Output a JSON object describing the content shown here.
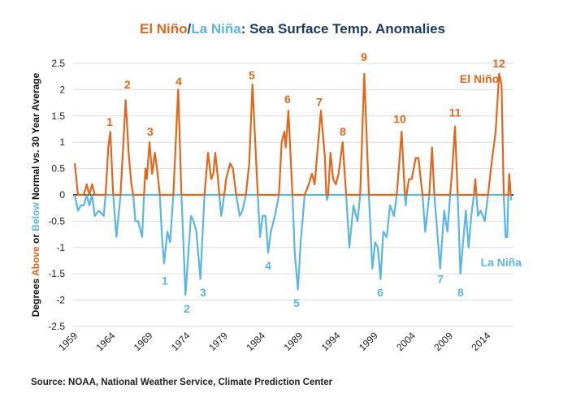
{
  "colors": {
    "el_nino": "#e2661b",
    "la_nina": "#5bb6e6",
    "title": "#1d3a63",
    "zero_line": "#000000",
    "grid": "#dddddd"
  },
  "title": {
    "part1": "El Niño",
    "slash": "/",
    "part2": "La Niña",
    "part3": ": Sea Surface Temp. Anomalies"
  },
  "source": "Source: NOAA, National Weather Service, Climate Prediction Center",
  "chart_data": {
    "type": "line",
    "title": "El Niño/La Niña: Sea Surface Temp. Anomalies",
    "ylabel": {
      "part1": "Degrees ",
      "above": "Above",
      "part2": " or ",
      "below": "Below",
      "part3": " Normal vs. 30 Year Average"
    },
    "xlabel": "",
    "ylim": [
      -2.5,
      2.5
    ],
    "yticks": [
      "2.5",
      "2",
      "1.5",
      "1",
      "0.5",
      "0",
      "-0.5",
      "-1",
      "-1.5",
      "-2",
      "-2.5"
    ],
    "ytick_values": [
      2.5,
      2,
      1.5,
      1,
      0.5,
      0,
      -0.5,
      -1,
      -1.5,
      -2,
      -2.5
    ],
    "xlim": [
      1959,
      2017.4
    ],
    "xticks": [
      "1959",
      "1964",
      "1969",
      "1974",
      "1979",
      "1984",
      "1989",
      "1994",
      "1999",
      "2004",
      "2009",
      "2014"
    ],
    "grid": true,
    "series": [
      {
        "name": "El Niño",
        "rule": "values above 0",
        "color": "#e2661b"
      },
      {
        "name": "La Niña",
        "rule": "values below 0",
        "color": "#5bb6e6"
      }
    ],
    "points": [
      [
        1959.0,
        0.6
      ],
      [
        1959.43,
        -0.3
      ],
      [
        1959.8,
        -0.2
      ],
      [
        1960.2,
        -0.2
      ],
      [
        1960.59,
        0.2
      ],
      [
        1960.95,
        -0.2
      ],
      [
        1961.31,
        0.2
      ],
      [
        1961.67,
        -0.4
      ],
      [
        1962.21,
        -0.3
      ],
      [
        1962.86,
        -0.4
      ],
      [
        1963.11,
        0
      ],
      [
        1963.47,
        0.9
      ],
      [
        1963.73,
        1.2
      ],
      [
        1964.12,
        0
      ],
      [
        1964.55,
        -0.8
      ],
      [
        1965.1,
        0
      ],
      [
        1965.78,
        1.8
      ],
      [
        1966.18,
        0.8
      ],
      [
        1966.54,
        0.2
      ],
      [
        1966.79,
        0
      ],
      [
        1967.08,
        -0.5
      ],
      [
        1967.44,
        -0.5
      ],
      [
        1967.98,
        -0.8
      ],
      [
        1968.23,
        0
      ],
      [
        1968.42,
        0.5
      ],
      [
        1968.6,
        0.3
      ],
      [
        1968.96,
        1.0
      ],
      [
        1969.31,
        0.4
      ],
      [
        1969.68,
        0.8
      ],
      [
        1970.04,
        0.4
      ],
      [
        1970.33,
        0
      ],
      [
        1970.62,
        -0.8
      ],
      [
        1970.9,
        -1.3
      ],
      [
        1971.34,
        -0.7
      ],
      [
        1971.7,
        -0.9
      ],
      [
        1972.13,
        0
      ],
      [
        1972.78,
        2.0
      ],
      [
        1973.21,
        0
      ],
      [
        1973.75,
        -1.9
      ],
      [
        1974.48,
        -0.4
      ],
      [
        1974.83,
        -0.5
      ],
      [
        1975.2,
        -0.7
      ],
      [
        1975.74,
        -1.6
      ],
      [
        1976.28,
        0
      ],
      [
        1976.75,
        0.8
      ],
      [
        1977.18,
        0.3
      ],
      [
        1977.47,
        0.4
      ],
      [
        1977.72,
        0.8
      ],
      [
        1978.08,
        0.3
      ],
      [
        1978.26,
        0
      ],
      [
        1978.51,
        -0.4
      ],
      [
        1978.91,
        0
      ],
      [
        1979.16,
        0.3
      ],
      [
        1979.7,
        0.6
      ],
      [
        1980.07,
        0.5
      ],
      [
        1980.5,
        0
      ],
      [
        1980.97,
        -0.4
      ],
      [
        1981.33,
        -0.3
      ],
      [
        1981.8,
        0
      ],
      [
        1982.24,
        0.6
      ],
      [
        1982.67,
        2.1
      ],
      [
        1983.38,
        0
      ],
      [
        1983.68,
        -0.8
      ],
      [
        1984.03,
        -0.4
      ],
      [
        1984.4,
        -0.4
      ],
      [
        1984.76,
        -1.1
      ],
      [
        1985.12,
        -0.7
      ],
      [
        1985.66,
        -0.4
      ],
      [
        1986.2,
        0
      ],
      [
        1986.56,
        1.0
      ],
      [
        1986.92,
        1.2
      ],
      [
        1987.1,
        0.9
      ],
      [
        1987.46,
        1.6
      ],
      [
        1988.0,
        0
      ],
      [
        1988.3,
        -1.1
      ],
      [
        1988.73,
        -1.8
      ],
      [
        1989.09,
        -0.9
      ],
      [
        1989.63,
        0
      ],
      [
        1990.17,
        0.2
      ],
      [
        1990.6,
        0.4
      ],
      [
        1990.96,
        0.2
      ],
      [
        1991.25,
        0.7
      ],
      [
        1991.79,
        1.6
      ],
      [
        1992.33,
        0.7
      ],
      [
        1992.5,
        0
      ],
      [
        1992.62,
        -0.1
      ],
      [
        1992.75,
        0
      ],
      [
        1993.06,
        0.8
      ],
      [
        1993.42,
        0.3
      ],
      [
        1993.77,
        0.2
      ],
      [
        1994.14,
        0.4
      ],
      [
        1994.68,
        1.0
      ],
      [
        1995.15,
        0
      ],
      [
        1995.58,
        -1.0
      ],
      [
        1996.12,
        -0.2
      ],
      [
        1996.66,
        -0.5
      ],
      [
        1997.02,
        0
      ],
      [
        1997.56,
        2.3
      ],
      [
        1998.18,
        0
      ],
      [
        1998.64,
        -1.4
      ],
      [
        1999.01,
        -0.9
      ],
      [
        1999.37,
        -1.0
      ],
      [
        1999.73,
        -1.6
      ],
      [
        2000.1,
        -0.7
      ],
      [
        2000.56,
        -0.8
      ],
      [
        2000.99,
        -0.2
      ],
      [
        2001.53,
        -0.4
      ],
      [
        2001.89,
        0
      ],
      [
        2002.54,
        1.2
      ],
      [
        2002.97,
        0
      ],
      [
        2003.08,
        -0.2
      ],
      [
        2003.2,
        0
      ],
      [
        2003.51,
        0.3
      ],
      [
        2003.88,
        0.3
      ],
      [
        2004.42,
        0.7
      ],
      [
        2004.78,
        0.7
      ],
      [
        2005.32,
        0
      ],
      [
        2005.68,
        -0.7
      ],
      [
        2006.22,
        0
      ],
      [
        2006.59,
        0.9
      ],
      [
        2006.9,
        0
      ],
      [
        2007.67,
        -1.4
      ],
      [
        2008.21,
        -0.3
      ],
      [
        2008.64,
        -0.7
      ],
      [
        2009.0,
        0
      ],
      [
        2009.29,
        0.5
      ],
      [
        2009.65,
        1.3
      ],
      [
        2010.01,
        0
      ],
      [
        2010.37,
        -1.5
      ],
      [
        2011.09,
        -0.3
      ],
      [
        2011.46,
        -1.0
      ],
      [
        2011.82,
        -0.4
      ],
      [
        2012.17,
        0
      ],
      [
        2012.36,
        0.3
      ],
      [
        2012.5,
        0
      ],
      [
        2012.71,
        -0.4
      ],
      [
        2013.08,
        -0.3
      ],
      [
        2013.62,
        -0.5
      ],
      [
        2014.05,
        0
      ],
      [
        2014.52,
        0.6
      ],
      [
        2015.06,
        1.2
      ],
      [
        2015.53,
        2.3
      ],
      [
        2015.85,
        2.1
      ],
      [
        2016.14,
        0
      ],
      [
        2016.39,
        -0.8
      ],
      [
        2016.61,
        -0.8
      ],
      [
        2016.75,
        0
      ],
      [
        2016.87,
        0.4
      ],
      [
        2017.08,
        0
      ],
      [
        2017.14,
        -0.1
      ]
    ],
    "annotations": {
      "el_nino": [
        {
          "text": "1",
          "x": 1963.65,
          "y": 1.39
        },
        {
          "text": "2",
          "x": 1966.03,
          "y": 2.1
        },
        {
          "text": "3",
          "x": 1969.06,
          "y": 1.2
        },
        {
          "text": "4",
          "x": 1972.85,
          "y": 2.16
        },
        {
          "text": "5",
          "x": 1982.59,
          "y": 2.28
        },
        {
          "text": "6",
          "x": 1987.35,
          "y": 1.82
        },
        {
          "text": "7",
          "x": 1991.57,
          "y": 1.77
        },
        {
          "text": "8",
          "x": 1994.71,
          "y": 1.2
        },
        {
          "text": "9",
          "x": 1997.53,
          "y": 2.62
        },
        {
          "text": "10",
          "x": 2002.29,
          "y": 1.44
        },
        {
          "text": "11",
          "x": 2009.65,
          "y": 1.57
        },
        {
          "text": "12",
          "x": 2015.5,
          "y": 2.5
        }
      ],
      "la_nina": [
        {
          "text": "1",
          "x": 1971.0,
          "y": -1.63
        },
        {
          "text": "2",
          "x": 1973.94,
          "y": -2.16
        },
        {
          "text": "3",
          "x": 1976.1,
          "y": -1.85
        },
        {
          "text": "4",
          "x": 1984.76,
          "y": -1.34
        },
        {
          "text": "5",
          "x": 1988.55,
          "y": -2.05
        },
        {
          "text": "6",
          "x": 1999.7,
          "y": -1.85
        },
        {
          "text": "7",
          "x": 2007.7,
          "y": -1.6
        },
        {
          "text": "8",
          "x": 2010.4,
          "y": -1.85
        }
      ],
      "el_nino_label": {
        "text": "El Niño",
        "x": 2012.9,
        "y": 2.21
      },
      "la_nina_label": {
        "text": "La Niña",
        "x": 2015.8,
        "y": -1.28
      }
    }
  }
}
